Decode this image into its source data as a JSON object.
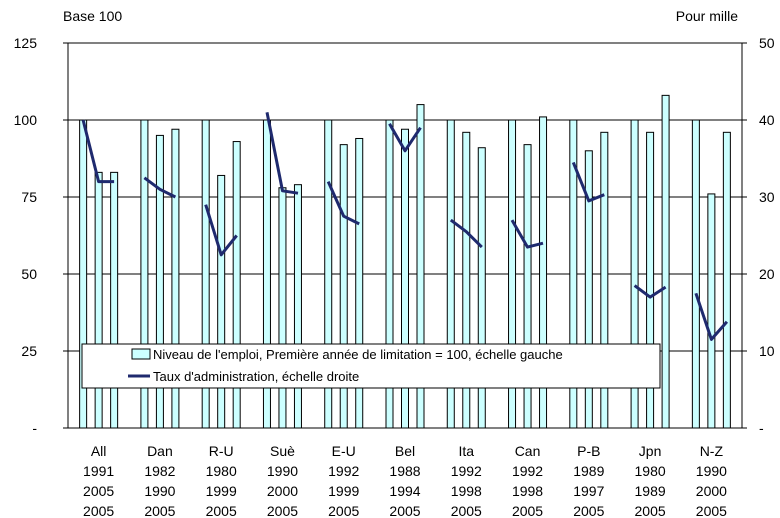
{
  "chart_data": {
    "type": "bar",
    "left_axis_unit": "Base 100",
    "right_axis_unit": "Pour mille",
    "left_ticks": [
      "-",
      "25",
      "50",
      "75",
      "100",
      "125"
    ],
    "right_ticks": [
      "-",
      "10",
      "20",
      "30",
      "40",
      "50"
    ],
    "ylim_left": [
      0,
      125
    ],
    "ylim_right": [
      0,
      50
    ],
    "grid": true,
    "legend": {
      "position": "bottom-center",
      "bar_label": "Niveau de l'emploi, Première année de limitation = 100, échelle gauche",
      "line_label": "Taux d'administration, échelle droite"
    },
    "colors": {
      "bar_fill": "#ccffff",
      "bar_stroke": "#000000",
      "line": "#1f2a6e",
      "grid": "#000000"
    },
    "groups": [
      {
        "country": "All",
        "years": [
          "1991",
          "2005",
          "2005"
        ],
        "employment": [
          100,
          83,
          83
        ],
        "rate": [
          40,
          32,
          32
        ]
      },
      {
        "country": "Dan",
        "years": [
          "1982",
          "1990",
          "2005"
        ],
        "employment": [
          100,
          95,
          97
        ],
        "rate": [
          32.5,
          31,
          30
        ]
      },
      {
        "country": "R-U",
        "years": [
          "1980",
          "1999",
          "2005"
        ],
        "employment": [
          100,
          82,
          93
        ],
        "rate": [
          29,
          22.5,
          25
        ]
      },
      {
        "country": "Suè",
        "years": [
          "1990",
          "2000",
          "2005"
        ],
        "employment": [
          100,
          78,
          79
        ],
        "rate": [
          41,
          30.8,
          30.5
        ]
      },
      {
        "country": "E-U",
        "years": [
          "1992",
          "1999",
          "2005"
        ],
        "employment": [
          100,
          92,
          94
        ],
        "rate": [
          32,
          27.5,
          26.5
        ]
      },
      {
        "country": "Bel",
        "years": [
          "1988",
          "1994",
          "2005"
        ],
        "employment": [
          100,
          97,
          105
        ],
        "rate": [
          39.5,
          36,
          39
        ]
      },
      {
        "country": "Ita",
        "years": [
          "1992",
          "1998",
          "2005"
        ],
        "employment": [
          100,
          96,
          91
        ],
        "rate": [
          27,
          25.5,
          23.5
        ]
      },
      {
        "country": "Can",
        "years": [
          "1992",
          "1998",
          "2005"
        ],
        "employment": [
          100,
          92,
          101
        ],
        "rate": [
          27,
          23.5,
          24
        ]
      },
      {
        "country": "P-B",
        "years": [
          "1989",
          "1997",
          "2005"
        ],
        "employment": [
          100,
          90,
          96
        ],
        "rate": [
          34.5,
          29.5,
          30.3
        ]
      },
      {
        "country": "Jpn",
        "years": [
          "1980",
          "1989",
          "2005"
        ],
        "employment": [
          100,
          96,
          108
        ],
        "rate": [
          18.5,
          17,
          18.3
        ]
      },
      {
        "country": "N-Z",
        "years": [
          "1990",
          "2000",
          "2005"
        ],
        "employment": [
          100,
          76,
          96
        ],
        "rate": [
          17.5,
          11.5,
          13.8
        ]
      }
    ]
  }
}
